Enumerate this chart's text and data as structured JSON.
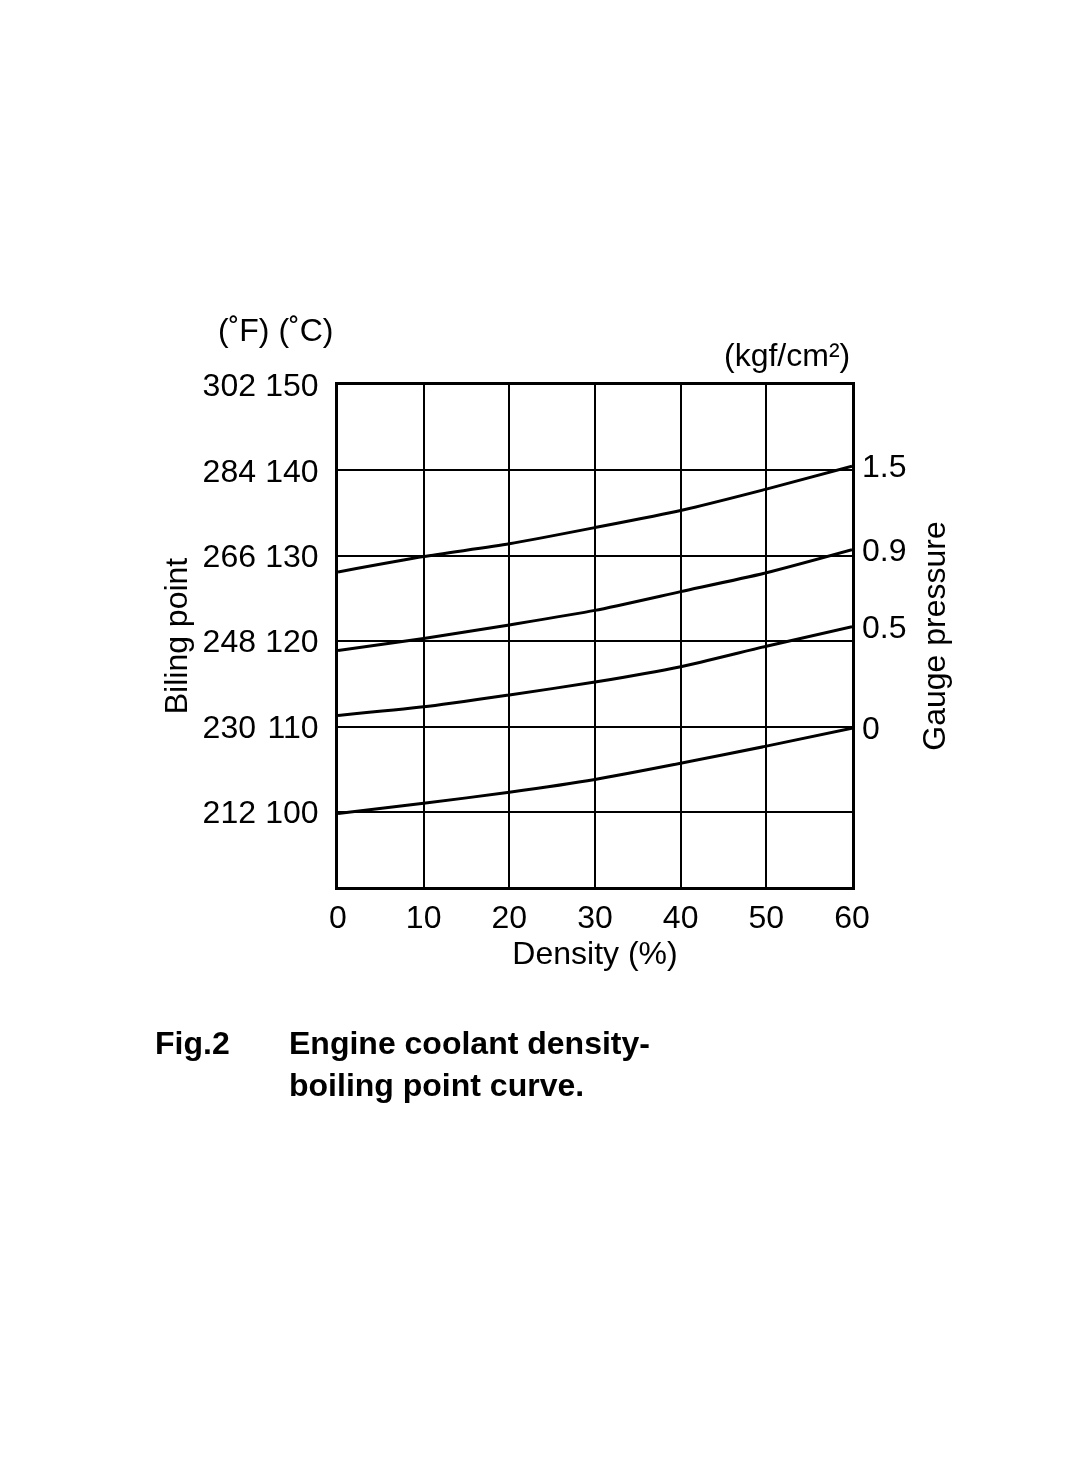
{
  "chart_data": {
    "type": "line",
    "title": "Fig.2 Engine coolant density-boiling point curve.",
    "xlabel": "Density (%)",
    "y2label": "Biling point",
    "y3label": "Gauge pressure",
    "annotations": [
      "(˚F) (˚C)",
      "(kgf/cm²)"
    ],
    "x": [
      0,
      10,
      20,
      30,
      40,
      50,
      60
    ],
    "xlim": [
      0,
      60
    ],
    "xticks": [
      0,
      10,
      20,
      30,
      40,
      50,
      60
    ],
    "ylim": [
      91.2,
      150
    ],
    "yticks": [
      100,
      110,
      120,
      130,
      140,
      150
    ],
    "y2lim": [
      196.2,
      302
    ],
    "y2ticks": [
      212,
      230,
      248,
      266,
      284,
      302
    ],
    "grid": true,
    "legend": false,
    "marker": "none",
    "line_style": "solid",
    "series": [
      {
        "name": "1.5",
        "color": "#000000",
        "values": [
          128.1,
          129.9,
          131.4,
          133.3,
          135.3,
          137.8,
          140.5
        ]
      },
      {
        "name": "0.9",
        "color": "#000000",
        "values": [
          118.9,
          120.3,
          121.9,
          123.6,
          125.8,
          128.0,
          130.7
        ]
      },
      {
        "name": "0.5",
        "color": "#000000",
        "values": [
          111.3,
          112.3,
          113.7,
          115.2,
          117.0,
          119.4,
          121.7
        ]
      },
      {
        "name": "0",
        "color": "#000000",
        "values": [
          99.8,
          101.0,
          102.3,
          103.8,
          105.7,
          107.7,
          109.8
        ]
      }
    ]
  }
}
